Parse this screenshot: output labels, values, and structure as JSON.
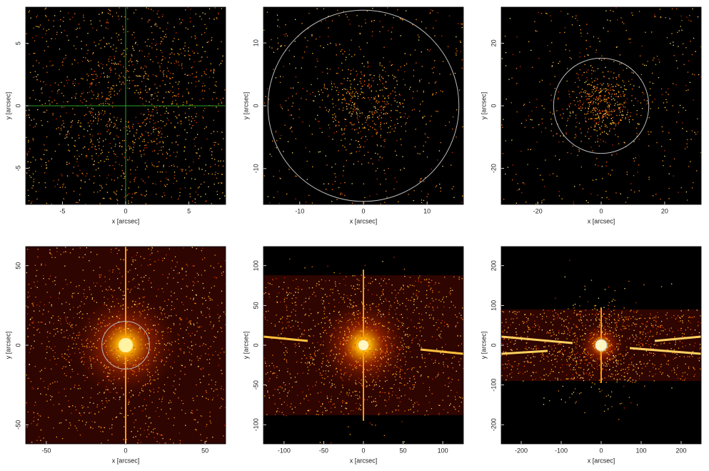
{
  "chart_data": [
    {
      "type": "image",
      "xlabel": "x [arcsec]",
      "ylabel": "y [arcsec]",
      "xlim": [
        -7.9,
        7.9
      ],
      "ylim": [
        -7.9,
        7.9
      ],
      "xticks": [
        -5,
        0,
        5
      ],
      "yticks": [
        -5,
        0,
        5
      ]
    },
    {
      "type": "image",
      "xlabel": "x [arcsec]",
      "ylabel": "y [arcsec]",
      "xlim": [
        -15.7,
        15.7
      ],
      "ylim": [
        -15.7,
        15.7
      ],
      "xticks": [
        -10,
        0,
        10
      ],
      "yticks": [
        -10,
        0,
        10
      ]
    },
    {
      "type": "image",
      "xlabel": "x [arcsec]",
      "ylabel": "y [arcsec]",
      "xlim": [
        -31.5,
        31.5
      ],
      "ylim": [
        -31.5,
        31.5
      ],
      "xticks": [
        -20,
        0,
        20
      ],
      "yticks": [
        -20,
        0,
        20
      ]
    },
    {
      "type": "image",
      "xlabel": "x [arcsec]",
      "ylabel": "y [arcsec]",
      "xlim": [
        -63,
        63
      ],
      "ylim": [
        -62,
        62
      ],
      "xticks": [
        -50,
        0,
        50
      ],
      "yticks": [
        -50,
        0,
        50
      ]
    },
    {
      "type": "image",
      "xlabel": "x [arcsec]",
      "ylabel": "y [arcsec]",
      "xlim": [
        -126,
        126
      ],
      "ylim": [
        -124,
        124
      ],
      "xticks": [
        -100,
        -50,
        0,
        50,
        100
      ],
      "yticks": [
        -100,
        -50,
        0,
        50,
        100
      ]
    },
    {
      "type": "image",
      "xlabel": "x [arcsec]",
      "ylabel": "y [arcsec]",
      "xlim": [
        -250,
        250
      ],
      "ylim": [
        -248,
        248
      ],
      "xticks": [
        -200,
        -100,
        0,
        100,
        200
      ],
      "yticks": [
        -200,
        -100,
        0,
        100,
        200
      ]
    }
  ]
}
